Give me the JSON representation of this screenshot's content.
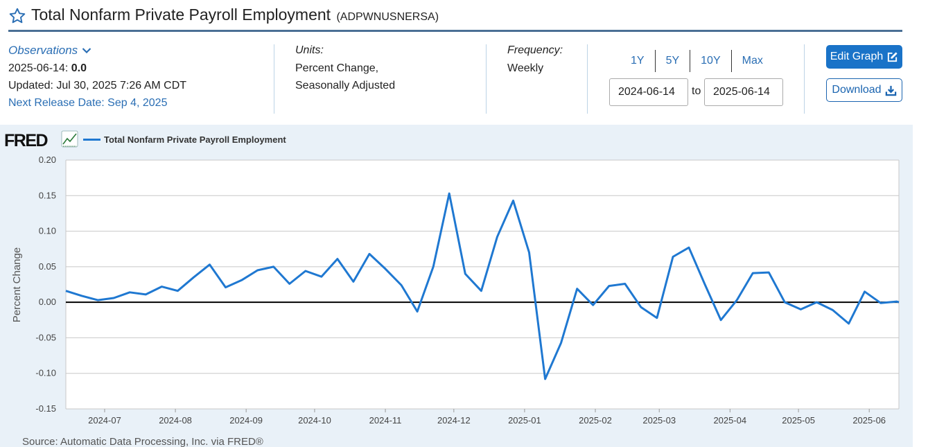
{
  "header": {
    "title": "Total Nonfarm Private Payroll Employment",
    "series_id": "(ADPWNUSNERSA)"
  },
  "observations": {
    "label": "Observations",
    "latest_date": "2025-06-14:",
    "latest_value": "0.0",
    "updated": "Updated: Jul 30, 2025 7:26 AM CDT",
    "next_release": "Next Release Date: Sep 4, 2025"
  },
  "units": {
    "label": "Units:",
    "line1": "Percent Change,",
    "line2": "Seasonally Adjusted"
  },
  "frequency": {
    "label": "Frequency:",
    "value": "Weekly"
  },
  "range": {
    "tabs": [
      "1Y",
      "5Y",
      "10Y",
      "Max"
    ],
    "start": "2024-06-14",
    "to_label": "to",
    "end": "2025-06-14"
  },
  "buttons": {
    "edit": "Edit Graph",
    "download": "Download"
  },
  "graph": {
    "logo": "FRED",
    "source": "Source: Automatic Data Processing, Inc. via FRED®"
  },
  "colors": {
    "line": "#1f78d1",
    "accent": "#1a73c8",
    "panel_bg": "#e9f1f8"
  },
  "chart_data": {
    "type": "line",
    "title": "",
    "xlabel": "",
    "ylabel": "Percent Change",
    "ylim": [
      -0.15,
      0.2
    ],
    "yticks": [
      0.2,
      0.15,
      0.1,
      0.05,
      0.0,
      -0.05,
      -0.1,
      -0.15
    ],
    "ytick_labels": [
      "0.20",
      "0.15",
      "0.10",
      "0.05",
      "0.00",
      "-0.05",
      "-0.10",
      "-0.15"
    ],
    "xlim": [
      "2024-06-14",
      "2025-06-14"
    ],
    "xtick_labels": [
      "2024-07",
      "2024-08",
      "2024-09",
      "2024-10",
      "2024-11",
      "2024-12",
      "2025-01",
      "2025-02",
      "2025-03",
      "2025-04",
      "2025-05",
      "2025-06"
    ],
    "xtick_dates": [
      "2024-07-01",
      "2024-08-01",
      "2024-09-01",
      "2024-10-01",
      "2024-11-01",
      "2024-12-01",
      "2025-01-01",
      "2025-02-01",
      "2025-03-01",
      "2025-04-01",
      "2025-05-01",
      "2025-06-01"
    ],
    "grid": true,
    "legend": "top-left",
    "series": [
      {
        "name": "Total Nonfarm Private Payroll Employment",
        "x": [
          "2024-06-14",
          "2024-06-21",
          "2024-06-28",
          "2024-07-05",
          "2024-07-12",
          "2024-07-19",
          "2024-07-26",
          "2024-08-02",
          "2024-08-09",
          "2024-08-16",
          "2024-08-23",
          "2024-08-30",
          "2024-09-06",
          "2024-09-13",
          "2024-09-20",
          "2024-09-27",
          "2024-10-04",
          "2024-10-11",
          "2024-10-18",
          "2024-10-25",
          "2024-11-01",
          "2024-11-08",
          "2024-11-15",
          "2024-11-22",
          "2024-11-29",
          "2024-12-06",
          "2024-12-13",
          "2024-12-20",
          "2024-12-27",
          "2025-01-03",
          "2025-01-10",
          "2025-01-17",
          "2025-01-24",
          "2025-01-31",
          "2025-02-07",
          "2025-02-14",
          "2025-02-21",
          "2025-02-28",
          "2025-03-07",
          "2025-03-14",
          "2025-03-21",
          "2025-03-28",
          "2025-04-04",
          "2025-04-11",
          "2025-04-18",
          "2025-04-25",
          "2025-05-02",
          "2025-05-09",
          "2025-05-16",
          "2025-05-23",
          "2025-05-30",
          "2025-06-06",
          "2025-06-13",
          "2025-06-14"
        ],
        "values": [
          0.016,
          0.009,
          0.003,
          0.006,
          0.014,
          0.011,
          0.022,
          0.016,
          0.035,
          0.053,
          0.021,
          0.031,
          0.045,
          0.05,
          0.026,
          0.044,
          0.036,
          0.061,
          0.029,
          0.068,
          0.047,
          0.024,
          -0.013,
          0.05,
          0.153,
          0.04,
          0.016,
          0.092,
          0.143,
          0.07,
          -0.108,
          -0.057,
          0.019,
          -0.004,
          0.023,
          0.026,
          -0.007,
          -0.022,
          0.064,
          0.077,
          0.025,
          -0.025,
          0.003,
          0.041,
          0.042,
          0.0,
          -0.01,
          0.0,
          -0.011,
          -0.03,
          0.015,
          -0.001,
          0.001,
          0.0
        ]
      }
    ]
  }
}
